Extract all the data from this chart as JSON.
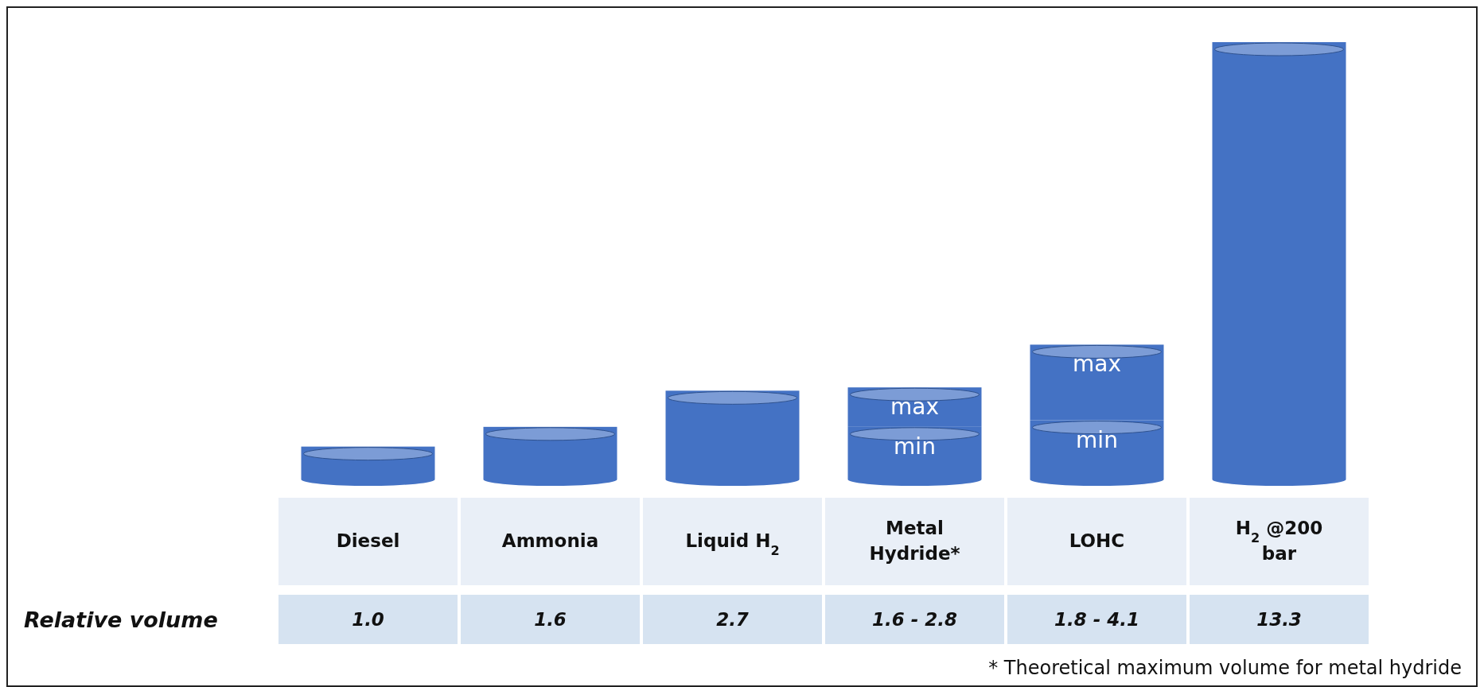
{
  "chart_data": {
    "type": "bar",
    "stacked": true,
    "ylabel": "Relative volume",
    "categories": [
      "Diesel",
      "Ammonia",
      "Liquid H$_{2}$",
      "Metal Hydride*",
      "LOHC",
      "H$_{2}$ @200 bar"
    ],
    "series": [
      {
        "color": "#4472c4",
        "values": [
          1.0,
          1.6,
          2.7,
          1.6,
          1.8,
          13.3
        ],
        "value_labels": [
          "1.0",
          "1.6",
          "2.7",
          "1.6 - 2.8",
          "1.8 - 4.1",
          "13.3"
        ]
      },
      {
        "color": "#4472c4",
        "values": [
          null,
          null,
          null,
          1.2,
          2.3,
          null
        ]
      }
    ],
    "annotations": [
      {
        "text": "min",
        "x": "Metal Hydride*",
        "y": 1.6
      },
      {
        "text": "max",
        "x": "Metal Hydride*",
        "y": 2.8
      },
      {
        "text": "min",
        "x": "LOHC",
        "y": 1.8
      },
      {
        "text": "max",
        "x": "LOHC",
        "y": 4.1
      },
      "* Theoretical maximum volume for metal hydride"
    ]
  }
}
